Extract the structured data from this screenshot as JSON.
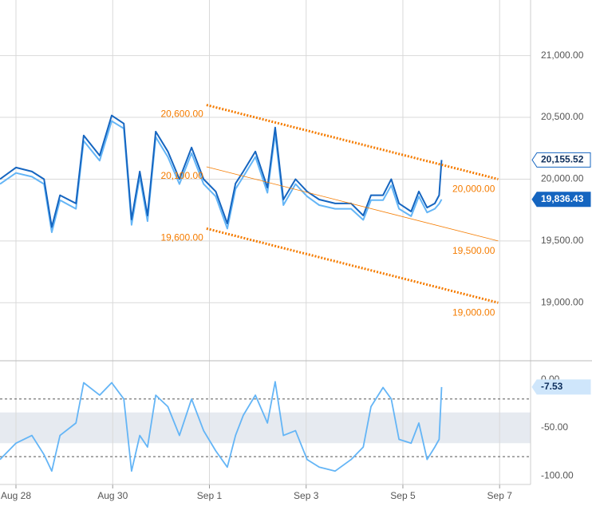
{
  "chart_data": [
    {
      "type": "line",
      "color_grid": "#d9d9d9",
      "x": [
        -0.33,
        0,
        0.33,
        0.58,
        0.74,
        0.91,
        1.24,
        1.4,
        1.73,
        1.98,
        2.23,
        2.39,
        2.56,
        2.72,
        2.89,
        3.14,
        3.38,
        3.63,
        3.88,
        4.13,
        4.37,
        4.54,
        4.7,
        4.95,
        5.2,
        5.36,
        5.53,
        5.78,
        6.02,
        6.27,
        6.6,
        6.93,
        7.18,
        7.34,
        7.59,
        7.76,
        7.92,
        8.17,
        8.33,
        8.5,
        8.66,
        8.75,
        8.8
      ],
      "series": [
        {
          "color": "#1565c0",
          "values": [
            20000,
            20094,
            20062,
            20000,
            19612,
            19870,
            19803,
            20353,
            20191,
            20515,
            20450,
            19674,
            20062,
            19706,
            20385,
            20224,
            20000,
            20256,
            20000,
            19900,
            19641,
            19965,
            20062,
            20224,
            19932,
            20418,
            19835,
            20000,
            19900,
            19835,
            19803,
            19803,
            19706,
            19870,
            19870,
            20000,
            19803,
            19738,
            19900,
            19770,
            19803,
            19870,
            20155.52
          ]
        },
        {
          "color": "#64b5f6",
          "values": [
            19960,
            20050,
            20020,
            19960,
            19570,
            19830,
            19760,
            20310,
            20150,
            20470,
            20410,
            19630,
            20020,
            19660,
            20340,
            20180,
            19960,
            20210,
            19960,
            19860,
            19600,
            19920,
            20020,
            20180,
            19890,
            20370,
            19790,
            19960,
            19860,
            19790,
            19760,
            19760,
            19670,
            19830,
            19830,
            19950,
            19760,
            19700,
            19860,
            19730,
            19760,
            19800,
            19836.43
          ]
        }
      ],
      "ylim": [
        18530,
        21450
      ],
      "yticks": [
        {
          "value": 19000,
          "label": "19,000.00"
        },
        {
          "value": 19500,
          "label": "19,500.00"
        },
        {
          "value": 20000,
          "label": "20,000.00"
        },
        {
          "value": 20500,
          "label": "20,500.00"
        },
        {
          "value": 21000,
          "label": "21,000.00"
        }
      ],
      "badges": [
        {
          "value": 20155.52,
          "label": "20,155.52",
          "style": "outline"
        },
        {
          "value": 19836.43,
          "label": "19,836.43",
          "style": "filled"
        }
      ],
      "channels": [
        {
          "x": [
            3.94,
            9.97
          ],
          "values": [
            20600,
            20000
          ],
          "value_labels": [
            "20,600.00",
            "20,000.00"
          ],
          "style": "dotted",
          "color": "#f57c00"
        },
        {
          "x": [
            3.94,
            9.97
          ],
          "values": [
            20100,
            19500
          ],
          "value_labels": [
            "20,100.00",
            "19,500.00"
          ],
          "style": "thin",
          "color": "#f57c00"
        },
        {
          "x": [
            3.94,
            9.97
          ],
          "values": [
            19600,
            19000
          ],
          "value_labels": [
            "19,600.00",
            "19,000.00"
          ],
          "style": "dotted",
          "color": "#f57c00"
        }
      ]
    },
    {
      "type": "line",
      "color": "#64b5f6",
      "x": [
        -0.33,
        0,
        0.33,
        0.58,
        0.74,
        0.91,
        1.24,
        1.4,
        1.73,
        1.98,
        2.23,
        2.39,
        2.56,
        2.72,
        2.89,
        3.14,
        3.38,
        3.63,
        3.88,
        4.13,
        4.37,
        4.54,
        4.7,
        4.95,
        5.2,
        5.36,
        5.53,
        5.78,
        6.02,
        6.27,
        6.6,
        6.93,
        7.18,
        7.34,
        7.59,
        7.76,
        7.92,
        8.17,
        8.33,
        8.5,
        8.66,
        8.75,
        8.8
      ],
      "values": [
        -83,
        -66,
        -58,
        -78,
        -95,
        -58,
        -45,
        -3,
        -16,
        -3,
        -20,
        -95,
        -58,
        -70,
        -16,
        -28,
        -58,
        -20,
        -53,
        -74,
        -91,
        -58,
        -37,
        -16,
        -45,
        -2,
        -58,
        -53,
        -83,
        -91,
        -95,
        -83,
        -70,
        -28,
        -8,
        -20,
        -62,
        -66,
        -45,
        -83,
        -70,
        -62,
        -7.53
      ],
      "ylim": [
        -109,
        19
      ],
      "yticks": [
        {
          "value": 0,
          "label": "0.00"
        },
        {
          "value": -50,
          "label": "-50.00"
        },
        {
          "value": -100,
          "label": "-100.00"
        }
      ],
      "levels": [
        -20,
        -80
      ],
      "band": [
        -66,
        -34
      ],
      "badge": {
        "value": -7.53,
        "label": "-7.53"
      },
      "xlim": [
        -0.33,
        10.64
      ],
      "xticks": [
        {
          "value": 0,
          "label": "Aug 28"
        },
        {
          "value": 2,
          "label": "Aug 30"
        },
        {
          "value": 4,
          "label": "Sep 1"
        },
        {
          "value": 6,
          "label": "Sep 3"
        },
        {
          "value": 8,
          "label": "Sep 5"
        },
        {
          "value": 10,
          "label": "Sep 7"
        }
      ]
    }
  ]
}
